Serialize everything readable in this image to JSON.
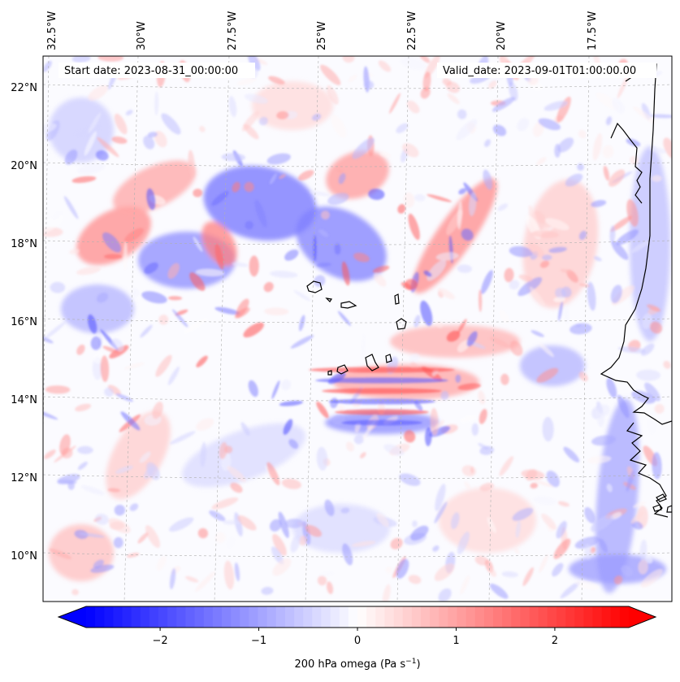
{
  "map": {
    "start_label": "Start date: 2023-08-31_00:00:00",
    "valid_label": "Valid_date: 2023-09-01T01:00:00.00",
    "lon_labels": [
      "32.5°W",
      "30°W",
      "27.5°W",
      "25°W",
      "22.5°W",
      "20°W",
      "17.5°W"
    ],
    "lat_labels": [
      "22°N",
      "20°N",
      "18°N",
      "16°N",
      "14°N",
      "12°N",
      "10°N"
    ]
  },
  "colorbar": {
    "label_text": "200 hPa omega (Pa s",
    "label_exponent": "−1",
    "label_close": ")",
    "ticks": [
      "−2",
      "−1",
      "0",
      "1",
      "2"
    ],
    "tick_values": [
      -2,
      -1,
      0,
      1,
      2
    ],
    "vmin": -2.75,
    "vmax": 2.75,
    "colormap": "bwr"
  },
  "colors": {
    "negative": "#0000ff",
    "neutral": "#ffffff",
    "positive": "#ff0000",
    "coastline": "#000000",
    "gridline": "#b0b0b0"
  }
}
